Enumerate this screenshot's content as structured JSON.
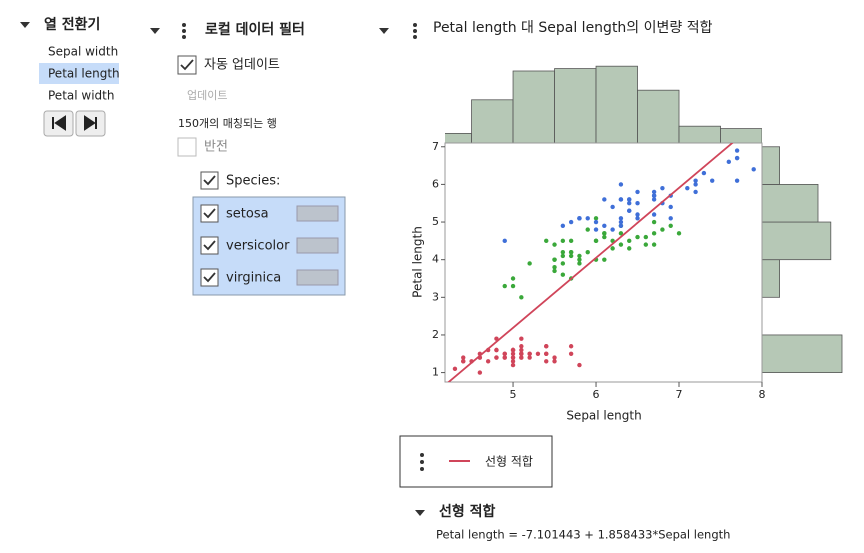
{
  "column_switcher": {
    "title": "열 전환기",
    "items": [
      "Sepal width",
      "Petal length",
      "Petal width"
    ]
  },
  "data_filter": {
    "title": "로컬 데이터 필터",
    "auto_update": "자동 업데이트",
    "update": "업데이트",
    "match_count": "150개의 매칭되는 행",
    "invert": "반전",
    "column": "Species:"
  },
  "chart_data": {
    "type": "scatter",
    "title": "Petal length 대 Sepal length의 이변량 적합",
    "x_label": "Sepal length",
    "y_label": "Petal length",
    "xlim": [
      4.18,
      8
    ],
    "ylim": [
      0.75,
      7.1
    ],
    "xticks": [
      5,
      6,
      7,
      8
    ],
    "yticks": [
      1,
      2,
      3,
      4,
      5,
      6,
      7
    ],
    "series": [
      {
        "name": "setosa",
        "color": "#d0455a",
        "x": [
          5.1,
          4.9,
          4.7,
          4.6,
          5.0,
          5.4,
          4.6,
          5.0,
          4.4,
          4.9,
          5.4,
          4.8,
          4.8,
          4.3,
          5.8,
          5.7,
          5.4,
          5.1,
          5.7,
          5.1,
          5.4,
          5.1,
          4.6,
          5.1,
          4.8,
          5.0,
          5.0,
          5.2,
          5.2,
          4.7,
          4.8,
          5.4,
          5.2,
          5.5,
          4.9,
          5.0,
          5.5,
          4.9,
          4.4,
          5.1,
          5.0,
          4.5,
          4.4,
          5.0,
          5.1,
          4.8,
          5.1,
          4.6,
          5.3,
          5.0
        ],
        "y": [
          1.4,
          1.4,
          1.3,
          1.5,
          1.4,
          1.7,
          1.4,
          1.5,
          1.4,
          1.5,
          1.5,
          1.6,
          1.4,
          1.1,
          1.2,
          1.5,
          1.3,
          1.4,
          1.7,
          1.5,
          1.7,
          1.5,
          1.0,
          1.7,
          1.9,
          1.6,
          1.6,
          1.5,
          1.4,
          1.6,
          1.6,
          1.5,
          1.5,
          1.4,
          1.5,
          1.2,
          1.3,
          1.4,
          1.3,
          1.5,
          1.3,
          1.3,
          1.3,
          1.6,
          1.9,
          1.4,
          1.6,
          1.4,
          1.5,
          1.4
        ]
      },
      {
        "name": "versicolor",
        "color": "#3aa83a",
        "x": [
          7.0,
          6.4,
          6.9,
          5.5,
          6.5,
          5.7,
          6.3,
          4.9,
          6.6,
          5.2,
          5.0,
          5.9,
          6.0,
          6.1,
          5.6,
          6.7,
          5.6,
          5.8,
          6.2,
          5.6,
          5.9,
          6.1,
          6.3,
          6.1,
          6.4,
          6.6,
          6.8,
          6.7,
          6.0,
          5.7,
          5.5,
          5.5,
          5.8,
          6.0,
          5.4,
          6.0,
          6.7,
          6.3,
          5.6,
          5.5,
          5.5,
          6.1,
          5.8,
          5.0,
          5.6,
          5.7,
          5.7,
          6.2,
          5.1,
          5.7
        ],
        "y": [
          4.7,
          4.5,
          4.9,
          4.0,
          4.6,
          4.5,
          4.7,
          3.3,
          4.6,
          3.9,
          3.5,
          4.2,
          4.0,
          4.7,
          3.6,
          4.4,
          4.5,
          4.1,
          4.5,
          3.9,
          4.8,
          4.0,
          4.9,
          4.7,
          4.3,
          4.4,
          4.8,
          5.0,
          4.5,
          3.5,
          3.8,
          3.7,
          3.9,
          5.1,
          4.5,
          4.5,
          4.7,
          4.4,
          4.1,
          4.0,
          4.4,
          4.6,
          4.0,
          3.3,
          4.2,
          4.2,
          4.2,
          4.3,
          3.0,
          4.1
        ]
      },
      {
        "name": "virginica",
        "color": "#3f6fd8",
        "x": [
          6.3,
          5.8,
          7.1,
          6.3,
          6.5,
          7.6,
          4.9,
          7.3,
          6.7,
          7.2,
          6.5,
          6.4,
          6.8,
          5.7,
          5.8,
          6.4,
          6.5,
          7.7,
          7.7,
          6.0,
          6.9,
          5.6,
          7.7,
          6.3,
          6.7,
          7.2,
          6.2,
          6.1,
          6.4,
          7.2,
          7.4,
          7.9,
          6.4,
          6.3,
          6.1,
          7.7,
          6.3,
          6.4,
          6.0,
          6.9,
          6.7,
          6.9,
          5.8,
          6.8,
          6.7,
          6.7,
          6.3,
          6.5,
          6.2,
          5.9
        ],
        "y": [
          6.0,
          5.1,
          5.9,
          5.6,
          5.8,
          6.6,
          4.5,
          6.3,
          5.8,
          6.1,
          5.1,
          5.3,
          5.5,
          5.0,
          5.1,
          5.3,
          5.5,
          6.7,
          6.9,
          5.0,
          5.7,
          4.9,
          6.7,
          4.9,
          5.7,
          6.0,
          4.8,
          4.9,
          5.6,
          5.8,
          6.1,
          6.4,
          5.6,
          5.1,
          5.6,
          6.1,
          5.6,
          5.5,
          4.8,
          5.4,
          5.6,
          5.1,
          5.1,
          5.9,
          5.7,
          5.2,
          5.0,
          5.2,
          5.4,
          5.1
        ]
      }
    ],
    "top_histogram": {
      "bins": [
        4,
        4.5,
        5,
        5.5,
        6,
        6.5,
        7,
        7.5,
        8
      ],
      "counts": [
        4,
        18,
        30,
        31,
        32,
        22,
        7,
        6
      ],
      "color": "#b6c8b6"
    },
    "right_histogram": {
      "bins": [
        1,
        2,
        3,
        4,
        5,
        6,
        7
      ],
      "counts": [
        50,
        0,
        11,
        43,
        35,
        11
      ],
      "color": "#b6c8b6"
    },
    "fit": {
      "name": "선형 적합",
      "color": "#d0455a",
      "intercept": -7.101443,
      "slope": 1.858433
    }
  },
  "fit_report": {
    "title": "선형 적합",
    "equation": "Petal length = -7.101443 + 1.858433*Sepal length"
  }
}
